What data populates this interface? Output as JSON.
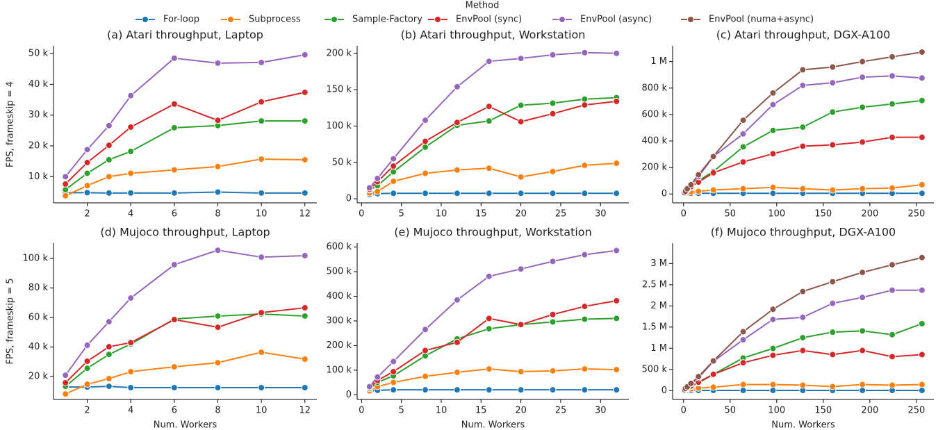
{
  "legend_title": "Method",
  "chart_data": [
    {
      "type": "line",
      "title": "(a) Atari throughput, Laptop",
      "ylabel": "FPS, frameskip = 4",
      "x": [
        1,
        2,
        3,
        4,
        6,
        8,
        10,
        12
      ],
      "xlim": [
        0.45,
        12.55
      ],
      "xticks": [
        2,
        4,
        6,
        8,
        10,
        12
      ],
      "ylim": [
        1500,
        52500
      ],
      "yticks": [
        {
          "value": 10000,
          "label": "10 k"
        },
        {
          "value": 20000,
          "label": "20 k"
        },
        {
          "value": 30000,
          "label": "30 k"
        },
        {
          "value": 40000,
          "label": "40 k"
        },
        {
          "value": 50000,
          "label": "50 k"
        }
      ],
      "series": [
        {
          "name": "For-loop",
          "color": "#1f77b4",
          "values": [
            4800,
            4800,
            4700,
            4700,
            4700,
            5000,
            4700,
            4700
          ]
        },
        {
          "name": "Subprocess",
          "color": "#ff7f0e",
          "values": [
            3800,
            7100,
            10000,
            11100,
            12200,
            13300,
            15700,
            15500
          ]
        },
        {
          "name": "Sample-Factory",
          "color": "#2ca02c",
          "values": [
            5800,
            11100,
            15500,
            18200,
            25900,
            26600,
            28100,
            28100
          ]
        },
        {
          "name": "EnvPool (sync)",
          "color": "#d62728",
          "values": [
            7600,
            14600,
            20200,
            26100,
            33600,
            28300,
            34300,
            37400
          ]
        },
        {
          "name": "EnvPool (async)",
          "color": "#9467bd",
          "values": [
            10000,
            18800,
            26600,
            36300,
            48500,
            46900,
            47100,
            49600
          ]
        }
      ]
    },
    {
      "type": "line",
      "title": "(b) Atari throughput, Workstation",
      "x": [
        1,
        2,
        4,
        8,
        12,
        16,
        20,
        24,
        28,
        32
      ],
      "xlim": [
        -0.55,
        33.55
      ],
      "xticks": [
        0,
        5,
        10,
        15,
        20,
        25,
        30
      ],
      "ylim": [
        -5600,
        210300
      ],
      "yticks": [
        0,
        {
          "value": 50000,
          "label": "50 k"
        },
        {
          "value": 100000,
          "label": "100 k"
        },
        {
          "value": 150000,
          "label": "150 k"
        },
        {
          "value": 200000,
          "label": "200 k"
        }
      ],
      "series": [
        {
          "name": "For-loop",
          "color": "#1f77b4",
          "values": [
            6000,
            7000,
            7500,
            7500,
            7500,
            7500,
            7500,
            7500,
            7500,
            7500
          ]
        },
        {
          "name": "Subprocess",
          "color": "#ff7f0e",
          "values": [
            8000,
            10000,
            24000,
            35000,
            39500,
            42000,
            30000,
            37500,
            46000,
            48800
          ]
        },
        {
          "name": "Sample-Factory",
          "color": "#2ca02c",
          "values": [
            12000,
            18000,
            37000,
            71000,
            101000,
            107000,
            128600,
            131500,
            137000,
            139000
          ]
        },
        {
          "name": "EnvPool (sync)",
          "color": "#d62728",
          "values": [
            13000,
            23500,
            45000,
            79000,
            105000,
            127000,
            106000,
            117000,
            129000,
            134000
          ]
        },
        {
          "name": "EnvPool (async)",
          "color": "#9467bd",
          "values": [
            15000,
            28000,
            55000,
            108000,
            154000,
            189000,
            193000,
            198000,
            201000,
            200000
          ]
        }
      ]
    },
    {
      "type": "line",
      "title": "(c) Atari throughput, DGX-A100",
      "x": [
        1,
        2,
        4,
        8,
        16,
        32,
        64,
        96,
        128,
        160,
        192,
        224,
        256
      ],
      "xlim": [
        -11.75,
        268.75
      ],
      "xticks": [
        0,
        50,
        100,
        150,
        200,
        250
      ],
      "ylim": [
        -67000,
        1119000
      ],
      "yticks": [
        0,
        {
          "value": 200000,
          "label": "200 k"
        },
        {
          "value": 400000,
          "label": "400 k"
        },
        {
          "value": 600000,
          "label": "600 k"
        },
        {
          "value": 800000,
          "label": "800 k"
        },
        {
          "value": 1000000,
          "label": "1 M"
        }
      ],
      "series": [
        {
          "name": "For-loop",
          "color": "#1f77b4",
          "values": [
            3000,
            4000,
            5000,
            5000,
            5000,
            5000,
            5000,
            5000,
            5000,
            5000,
            5000,
            5000,
            5000
          ]
        },
        {
          "name": "Subprocess",
          "color": "#ff7f0e",
          "values": [
            3000,
            5000,
            10000,
            15000,
            20000,
            30000,
            40000,
            50000,
            40000,
            30000,
            40000,
            45000,
            70000
          ]
        },
        {
          "name": "Sample-Factory",
          "color": "#2ca02c",
          "values": [
            8000,
            15000,
            30000,
            50000,
            100000,
            170000,
            356000,
            480000,
            505000,
            619000,
            655000,
            680000,
            706000
          ]
        },
        {
          "name": "EnvPool (sync)",
          "color": "#d62728",
          "values": [
            8000,
            15000,
            30000,
            55000,
            90000,
            160000,
            242000,
            304000,
            361000,
            371000,
            392000,
            428000,
            428000
          ]
        },
        {
          "name": "EnvPool (async)",
          "color": "#9467bd",
          "values": [
            10000,
            20000,
            40000,
            70000,
            130000,
            283000,
            454000,
            675000,
            820000,
            840000,
            882000,
            892000,
            876000
          ]
        },
        {
          "name": "EnvPool (numa+async)",
          "color": "#8c564b",
          "values": [
            10000,
            20000,
            40000,
            70000,
            145000,
            283000,
            557000,
            763000,
            938000,
            959000,
            1000000,
            1036000,
            1072000
          ]
        }
      ]
    },
    {
      "type": "line",
      "title": "(d) Mujoco throughput, Laptop",
      "ylabel": "FPS, frameskip = 5",
      "xlabel": "Num. Workers",
      "x": [
        1,
        2,
        3,
        4,
        6,
        8,
        10,
        12
      ],
      "xlim": [
        0.45,
        12.55
      ],
      "xticks": [
        2,
        4,
        6,
        8,
        10,
        12
      ],
      "ylim": [
        4500,
        110400
      ],
      "yticks": [
        {
          "value": 20000,
          "label": "20 k"
        },
        {
          "value": 40000,
          "label": "40 k"
        },
        {
          "value": 60000,
          "label": "60 k"
        },
        {
          "value": 80000,
          "label": "80 k"
        },
        {
          "value": 100000,
          "label": "100 k"
        }
      ],
      "series": [
        {
          "name": "For-loop",
          "color": "#1f77b4",
          "values": [
            12900,
            12900,
            13400,
            12500,
            12500,
            12500,
            12500,
            12500
          ]
        },
        {
          "name": "Subprocess",
          "color": "#ff7f0e",
          "values": [
            8200,
            14800,
            18600,
            23300,
            26600,
            29400,
            36500,
            31800
          ]
        },
        {
          "name": "Sample-Factory",
          "color": "#2ca02c",
          "values": [
            13400,
            25600,
            35000,
            42000,
            59000,
            61000,
            62400,
            61000
          ]
        },
        {
          "name": "EnvPool (sync)",
          "color": "#d62728",
          "values": [
            15800,
            30400,
            40200,
            43000,
            58600,
            53400,
            63300,
            66600
          ]
        },
        {
          "name": "EnvPool (async)",
          "color": "#9467bd",
          "values": [
            20900,
            41200,
            57200,
            73200,
            95800,
            105600,
            100900,
            101900
          ]
        }
      ]
    },
    {
      "type": "line",
      "title": "(e) Mujoco throughput, Workstation",
      "xlabel": "Num. Workers",
      "x": [
        1,
        2,
        4,
        8,
        12,
        16,
        20,
        24,
        28,
        32
      ],
      "xlim": [
        -0.55,
        33.55
      ],
      "xticks": [
        0,
        5,
        10,
        15,
        20,
        25,
        30
      ],
      "ylim": [
        -19000,
        616000
      ],
      "yticks": [
        0,
        {
          "value": 100000,
          "label": "100 k"
        },
        {
          "value": 200000,
          "label": "200 k"
        },
        {
          "value": 300000,
          "label": "300 k"
        },
        {
          "value": 400000,
          "label": "400 k"
        },
        {
          "value": 500000,
          "label": "500 k"
        },
        {
          "value": 600000,
          "label": "600 k"
        }
      ],
      "series": [
        {
          "name": "For-loop",
          "color": "#1f77b4",
          "values": [
            15000,
            18000,
            20000,
            20000,
            20000,
            20000,
            20000,
            20000,
            20000,
            20000
          ]
        },
        {
          "name": "Subprocess",
          "color": "#ff7f0e",
          "values": [
            16000,
            33000,
            50000,
            75000,
            91000,
            105000,
            94000,
            97000,
            105000,
            102000
          ]
        },
        {
          "name": "Sample-Factory",
          "color": "#2ca02c",
          "values": [
            25000,
            50000,
            77000,
            158000,
            227000,
            268000,
            285000,
            296000,
            307000,
            310000
          ]
        },
        {
          "name": "EnvPool (sync)",
          "color": "#d62728",
          "values": [
            30000,
            58000,
            94000,
            180000,
            213000,
            310000,
            285000,
            326000,
            359000,
            382000
          ]
        },
        {
          "name": "EnvPool (async)",
          "color": "#9467bd",
          "values": [
            33000,
            72000,
            135000,
            265000,
            385000,
            481000,
            511000,
            542000,
            569000,
            586000
          ]
        }
      ]
    },
    {
      "type": "line",
      "title": "(f) Mujoco throughput, DGX-A100",
      "xlabel": "Num. Workers",
      "x": [
        1,
        2,
        4,
        8,
        16,
        32,
        64,
        96,
        128,
        160,
        192,
        224,
        256
      ],
      "xlim": [
        -11.75,
        268.75
      ],
      "xticks": [
        0,
        50,
        100,
        150,
        200,
        250
      ],
      "ylim": [
        -208000,
        3481000
      ],
      "yticks": [
        0,
        {
          "value": 500000,
          "label": "500 k"
        },
        {
          "value": 1000000,
          "label": "1 M"
        },
        {
          "value": 1500000,
          "label": "1.5 M"
        },
        {
          "value": 2000000,
          "label": "2 M"
        },
        {
          "value": 2500000,
          "label": "2.5 M"
        },
        {
          "value": 3000000,
          "label": "3 M"
        }
      ],
      "series": [
        {
          "name": "For-loop",
          "color": "#1f77b4",
          "values": [
            2000,
            3000,
            4000,
            5000,
            5000,
            5000,
            5000,
            5000,
            5000,
            5000,
            5000,
            5000,
            5000
          ]
        },
        {
          "name": "Subprocess",
          "color": "#ff7f0e",
          "values": [
            10000,
            20000,
            30000,
            40000,
            60000,
            80000,
            144000,
            144000,
            128000,
            96000,
            144000,
            128000,
            144000
          ]
        },
        {
          "name": "Sample-Factory",
          "color": "#2ca02c",
          "values": [
            10000,
            30000,
            50000,
            100000,
            180000,
            385000,
            770000,
            995000,
            1250000,
            1380000,
            1410000,
            1320000,
            1580000
          ]
        },
        {
          "name": "EnvPool (sync)",
          "color": "#d62728",
          "values": [
            10000,
            30000,
            60000,
            110000,
            200000,
            385000,
            658000,
            834000,
            947000,
            850000,
            947000,
            802000,
            850000
          ]
        },
        {
          "name": "EnvPool (async)",
          "color": "#9467bd",
          "values": [
            20000,
            50000,
            90000,
            160000,
            300000,
            690000,
            1200000,
            1680000,
            1730000,
            2060000,
            2200000,
            2370000,
            2370000
          ]
        },
        {
          "name": "EnvPool (numa+async)",
          "color": "#8c564b",
          "values": [
            20000,
            50000,
            90000,
            170000,
            330000,
            700000,
            1390000,
            1920000,
            2340000,
            2570000,
            2790000,
            2970000,
            3140000
          ]
        }
      ]
    }
  ]
}
